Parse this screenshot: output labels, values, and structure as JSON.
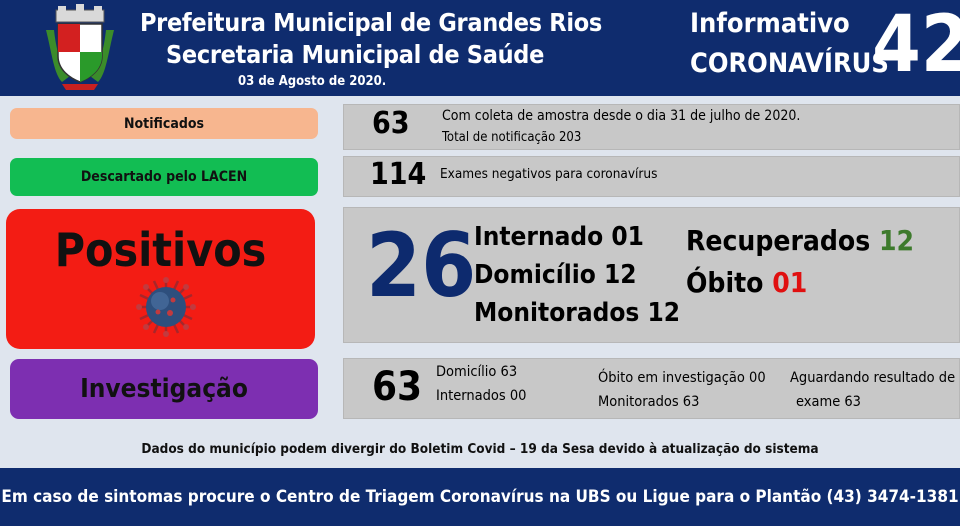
{
  "header": {
    "title_line1": "Prefeitura Municipal de Grandes Rios",
    "title_line2": "Secretaria Municipal de Saúde",
    "date": "03 de Agosto de 2020.",
    "informativo": "Informativo",
    "coronavirus": "CORONAVÍRUS",
    "edition_number": "42"
  },
  "notificados": {
    "label": "Notificados",
    "value": "63",
    "line1": "Com coleta de amostra desde o dia 31 de julho de 2020.",
    "line2": "Total de notificação 203"
  },
  "descartado": {
    "label": "Descartado pelo LACEN",
    "value": "114",
    "text": "Exames negativos para coronavírus"
  },
  "positivos": {
    "label": "Positivos",
    "value": "26",
    "internado": "Internado 01",
    "domicilio": "Domicílio 12",
    "monitorados": "Monitorados 12",
    "recuperados_label": "Recuperados ",
    "recuperados_value": "12",
    "obito_label": "Óbito ",
    "obito_value": "01"
  },
  "investigacao": {
    "label": "Investigação",
    "value": "63",
    "domicilio": "Domicílio 63",
    "internados": "Internados 00",
    "obito_investigacao": "Óbito em investigação 00",
    "monitorados": "Monitorados 63",
    "aguardando_line1": "Aguardando resultado de",
    "aguardando_line2": "exame 63"
  },
  "note": "Dados do município podem divergir do Boletim Covid – 19 da Sesa devido à atualização do sistema",
  "footer": "Em caso de sintomas procure o Centro de Triagem Coronavírus na UBS ou Ligue para o Plantão (43) 3474-1381",
  "colors": {
    "navy": "#0f2c6e",
    "notificados": "#f7b68f",
    "descartado": "#12bd53",
    "positivos": "#f31c14",
    "investigacao": "#7d2fb1",
    "recuperados": "#3d7a2c",
    "obito": "#e01010"
  },
  "icons": {
    "crest": "municipal-coat-of-arms",
    "virus": "coronavirus-icon"
  }
}
